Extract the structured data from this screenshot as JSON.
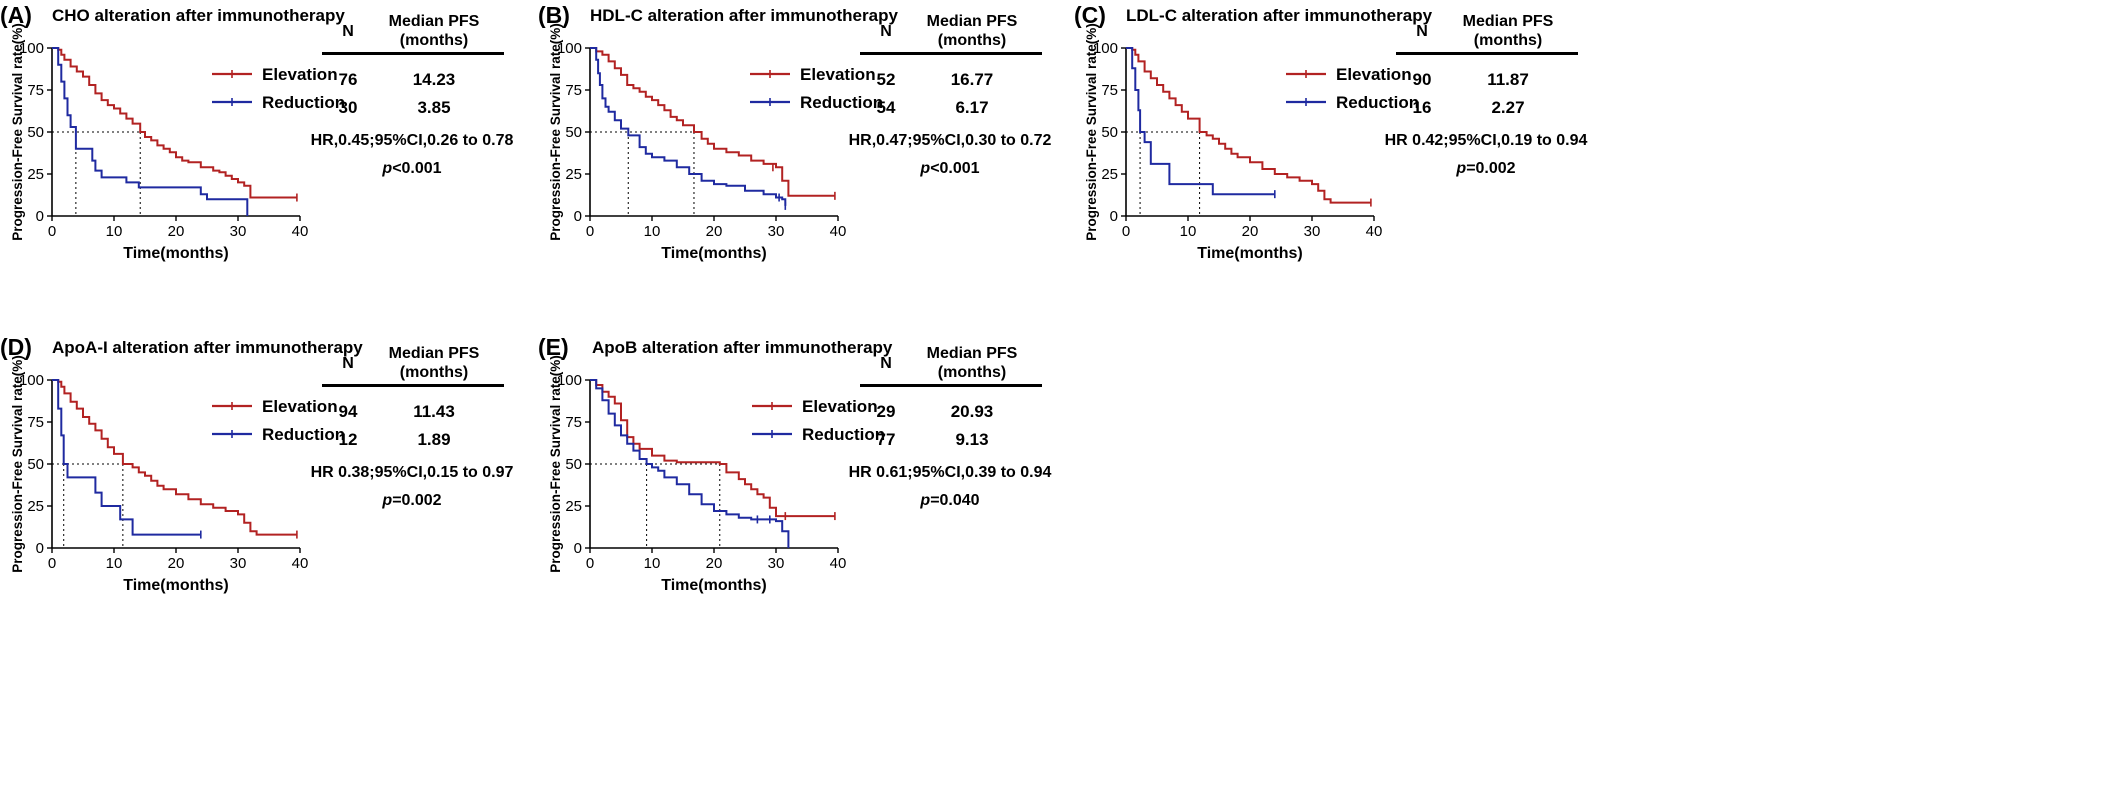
{
  "colors": {
    "elevation": "#b22222",
    "reduction": "#1f2aa0",
    "axis": "#000000"
  },
  "panels": [
    {
      "label": "(A)",
      "title": "CHO alteration after immunotherapy",
      "table": {
        "n_header": "N",
        "median_header": "Median PFS\n(months)",
        "rows": [
          {
            "label": "Elevation",
            "n": "76",
            "median": "14.23"
          },
          {
            "label": "Reduction",
            "n": "30",
            "median": "3.85"
          }
        ]
      },
      "hr_text": "HR,0.45;95%CI,0.26 to 0.78",
      "p_label": "p",
      "p_value": "<0.001"
    },
    {
      "label": "(B)",
      "title": "HDL-C alteration after immunotherapy",
      "table": {
        "n_header": "N",
        "median_header": "Median PFS\n(months)",
        "rows": [
          {
            "label": "Elevation",
            "n": "52",
            "median": "16.77"
          },
          {
            "label": "Reduction",
            "n": "54",
            "median": "6.17"
          }
        ]
      },
      "hr_text": "HR,0.47;95%CI,0.30 to 0.72",
      "p_label": "p",
      "p_value": "<0.001"
    },
    {
      "label": "(C)",
      "title": "LDL-C alteration after immunotherapy",
      "table": {
        "n_header": "N",
        "median_header": "Median PFS\n(months)",
        "rows": [
          {
            "label": "Elevation",
            "n": "90",
            "median": "11.87"
          },
          {
            "label": "Reduction",
            "n": "16",
            "median": "2.27"
          }
        ]
      },
      "hr_text": "HR 0.42;95%CI,0.19 to 0.94",
      "p_label": "p",
      "p_value": "=0.002"
    },
    {
      "label": "(D)",
      "title": "ApoA-I alteration after immunotherapy",
      "table": {
        "n_header": "N",
        "median_header": "Median PFS\n(months)",
        "rows": [
          {
            "label": "Elevation",
            "n": "94",
            "median": "11.43"
          },
          {
            "label": "Reduction",
            "n": "12",
            "median": "1.89"
          }
        ]
      },
      "hr_text": "HR 0.38;95%CI,0.15 to 0.97",
      "p_label": "p",
      "p_value": "=0.002"
    },
    {
      "label": "(E)",
      "title": "ApoB alteration after immunotherapy",
      "table": {
        "n_header": "N",
        "median_header": "Median PFS\n(months)",
        "rows": [
          {
            "label": "Elevation",
            "n": "29",
            "median": "20.93"
          },
          {
            "label": "Reduction",
            "n": "77",
            "median": "9.13"
          }
        ]
      },
      "hr_text": "HR 0.61;95%CI,0.39 to 0.94",
      "p_label": "p",
      "p_value": "=0.040"
    }
  ],
  "chart_data": [
    {
      "type": "line",
      "subtype": "kaplan-meier",
      "title": "CHO alteration after immunotherapy",
      "xlabel": "Time(months)",
      "ylabel": "Progression-Free Survival rate(%)",
      "xlim": [
        0,
        40
      ],
      "ylim": [
        0,
        100
      ],
      "xticks": [
        0,
        10,
        20,
        30,
        40
      ],
      "yticks": [
        0,
        25,
        50,
        75,
        100
      ],
      "median_line_y": 50,
      "series": [
        {
          "name": "Elevation",
          "color": "#b22222",
          "median": 14.23,
          "end": 39.5,
          "x": [
            0,
            1,
            1.5,
            2,
            3,
            4,
            5,
            6,
            7,
            8,
            9,
            10,
            11,
            12,
            13,
            14.23,
            15,
            16,
            17,
            18,
            19,
            20,
            21,
            22,
            24,
            26,
            27,
            28,
            29,
            30,
            31,
            32,
            39.5
          ],
          "y": [
            100,
            99,
            96,
            93,
            89,
            86,
            83,
            78,
            73,
            69,
            66,
            64,
            61,
            58,
            55,
            50,
            47,
            45,
            42,
            40,
            38,
            35,
            33,
            32,
            29,
            27,
            26,
            24,
            22,
            20,
            18,
            11,
            11
          ],
          "censor": [
            [
              39.5,
              11
            ]
          ]
        },
        {
          "name": "Reduction",
          "color": "#1f2aa0",
          "median": 3.85,
          "end": 31.5,
          "x": [
            0,
            1,
            1.5,
            2,
            2.5,
            3,
            3.85,
            6,
            6.5,
            7,
            8,
            10,
            12,
            13,
            14,
            24,
            25,
            31,
            31.5
          ],
          "y": [
            100,
            90,
            80,
            70,
            60,
            53,
            40,
            40,
            33,
            27,
            23,
            23,
            20,
            20,
            17,
            13,
            10,
            10,
            0
          ],
          "censor": []
        }
      ]
    },
    {
      "type": "line",
      "subtype": "kaplan-meier",
      "title": "HDL-C alteration after immunotherapy",
      "xlabel": "Time(months)",
      "ylabel": "Progression-Free Survival rate(%)",
      "xlim": [
        0,
        40
      ],
      "ylim": [
        0,
        100
      ],
      "xticks": [
        0,
        10,
        20,
        30,
        40
      ],
      "yticks": [
        0,
        25,
        50,
        75,
        100
      ],
      "median_line_y": 50,
      "series": [
        {
          "name": "Elevation",
          "color": "#b22222",
          "median": 16.77,
          "end": 39.5,
          "x": [
            0,
            1,
            2,
            3,
            4,
            5,
            6,
            7,
            8,
            9,
            10,
            11,
            12,
            13,
            14,
            15,
            16.77,
            18,
            19,
            20,
            22,
            24,
            26,
            28,
            30,
            31,
            32,
            39.5
          ],
          "y": [
            100,
            98,
            96,
            92,
            88,
            84,
            78,
            76,
            74,
            71,
            69,
            66,
            63,
            59,
            57,
            54,
            50,
            46,
            43,
            40,
            38,
            36,
            33,
            31,
            29,
            21,
            12,
            12
          ],
          "censor": [
            [
              39.5,
              12
            ],
            [
              29.5,
              29
            ]
          ]
        },
        {
          "name": "Reduction",
          "color": "#1f2aa0",
          "median": 6.17,
          "end": 31.5,
          "x": [
            0,
            1,
            1.3,
            1.6,
            2,
            2.5,
            3,
            4,
            5,
            6.17,
            8,
            9,
            10,
            12,
            14,
            16,
            18,
            20,
            22,
            25,
            28,
            30,
            31,
            31.5
          ],
          "y": [
            100,
            93,
            85,
            78,
            70,
            65,
            62,
            57,
            52,
            48,
            41,
            37,
            35,
            33,
            29,
            25,
            21,
            19,
            18,
            15,
            13,
            11,
            10,
            6
          ],
          "censor": [
            [
              30.5,
              11
            ],
            [
              31.5,
              6
            ]
          ]
        }
      ]
    },
    {
      "type": "line",
      "subtype": "kaplan-meier",
      "title": "LDL-C alteration after immunotherapy",
      "xlabel": "Time(months)",
      "ylabel": "Progression-Free Survival rate(%)",
      "xlim": [
        0,
        40
      ],
      "ylim": [
        0,
        100
      ],
      "xticks": [
        0,
        10,
        20,
        30,
        40
      ],
      "yticks": [
        0,
        25,
        50,
        75,
        100
      ],
      "median_line_y": 50,
      "series": [
        {
          "name": "Elevation",
          "color": "#b22222",
          "median": 11.87,
          "end": 39.5,
          "x": [
            0,
            1,
            1.5,
            2,
            3,
            4,
            5,
            6,
            7,
            8,
            9,
            10,
            11.87,
            13,
            14,
            15,
            16,
            17,
            18,
            20,
            22,
            24,
            26,
            28,
            30,
            31,
            32,
            33,
            39.5
          ],
          "y": [
            100,
            99,
            96,
            92,
            86,
            82,
            78,
            74,
            70,
            66,
            62,
            58,
            50,
            48,
            46,
            43,
            40,
            37,
            35,
            32,
            28,
            25,
            23,
            21,
            19,
            15,
            10,
            8,
            8
          ],
          "censor": [
            [
              39.5,
              8
            ]
          ]
        },
        {
          "name": "Reduction",
          "color": "#1f2aa0",
          "median": 2.27,
          "end": 24,
          "x": [
            0,
            1,
            1.5,
            2,
            2.27,
            3,
            4,
            7,
            8,
            14,
            24
          ],
          "y": [
            100,
            88,
            75,
            63,
            50,
            44,
            31,
            19,
            19,
            13,
            13
          ],
          "censor": [
            [
              24,
              13
            ]
          ]
        }
      ]
    },
    {
      "type": "line",
      "subtype": "kaplan-meier",
      "title": "ApoA-I alteration after immunotherapy",
      "xlabel": "Time(months)",
      "ylabel": "Progression-Free Survival rate(%)",
      "xlim": [
        0,
        40
      ],
      "ylim": [
        0,
        100
      ],
      "xticks": [
        0,
        10,
        20,
        30,
        40
      ],
      "yticks": [
        0,
        25,
        50,
        75,
        100
      ],
      "median_line_y": 50,
      "series": [
        {
          "name": "Elevation",
          "color": "#b22222",
          "median": 11.43,
          "end": 39.5,
          "x": [
            0,
            1,
            1.5,
            2,
            3,
            4,
            5,
            6,
            7,
            8,
            9,
            10,
            11.43,
            13,
            14,
            15,
            16,
            17,
            18,
            20,
            22,
            24,
            26,
            28,
            30,
            31,
            32,
            33,
            39.5
          ],
          "y": [
            100,
            99,
            96,
            92,
            87,
            83,
            78,
            74,
            70,
            65,
            60,
            56,
            50,
            48,
            45,
            43,
            40,
            37,
            35,
            32,
            29,
            26,
            24,
            22,
            20,
            15,
            10,
            8,
            8
          ],
          "censor": [
            [
              39.5,
              8
            ]
          ]
        },
        {
          "name": "Reduction",
          "color": "#1f2aa0",
          "median": 1.89,
          "end": 24,
          "x": [
            0,
            1,
            1.5,
            1.89,
            2.5,
            7,
            8,
            10,
            11,
            13,
            24
          ],
          "y": [
            100,
            83,
            67,
            50,
            42,
            33,
            25,
            25,
            17,
            8,
            8
          ],
          "censor": [
            [
              24,
              8
            ]
          ]
        }
      ]
    },
    {
      "type": "line",
      "subtype": "kaplan-meier",
      "title": "ApoB alteration after immunotherapy",
      "xlabel": "Time(months)",
      "ylabel": "Progression-Free Survival rate(%)",
      "xlim": [
        0,
        40
      ],
      "ylim": [
        0,
        100
      ],
      "xticks": [
        0,
        10,
        20,
        30,
        40
      ],
      "yticks": [
        0,
        25,
        50,
        75,
        100
      ],
      "median_line_y": 50,
      "series": [
        {
          "name": "Elevation",
          "color": "#b22222",
          "median": 20.93,
          "end": 39.5,
          "x": [
            0,
            1,
            2,
            3,
            4,
            5,
            6,
            7,
            8,
            10,
            12,
            14,
            16,
            18,
            20.93,
            22,
            24,
            25,
            26,
            27,
            28,
            29,
            30,
            31,
            39.5
          ],
          "y": [
            100,
            97,
            93,
            90,
            86,
            76,
            66,
            62,
            59,
            55,
            52,
            51,
            51,
            51,
            50,
            45,
            41,
            38,
            35,
            32,
            30,
            24,
            19,
            19,
            19
          ],
          "censor": [
            [
              39.5,
              19
            ],
            [
              31.5,
              19
            ]
          ]
        },
        {
          "name": "Reduction",
          "color": "#1f2aa0",
          "median": 9.13,
          "end": 32,
          "x": [
            0,
            1,
            2,
            3,
            4,
            5,
            6,
            7,
            8,
            9.13,
            10,
            11,
            12,
            14,
            16,
            18,
            20,
            22,
            24,
            26,
            28,
            30,
            31,
            32
          ],
          "y": [
            100,
            95,
            88,
            80,
            73,
            67,
            62,
            58,
            53,
            50,
            48,
            46,
            42,
            38,
            32,
            26,
            22,
            20,
            18,
            17,
            17,
            16,
            10,
            0
          ],
          "censor": [
            [
              27,
              17
            ],
            [
              29,
              17
            ]
          ]
        }
      ]
    }
  ]
}
